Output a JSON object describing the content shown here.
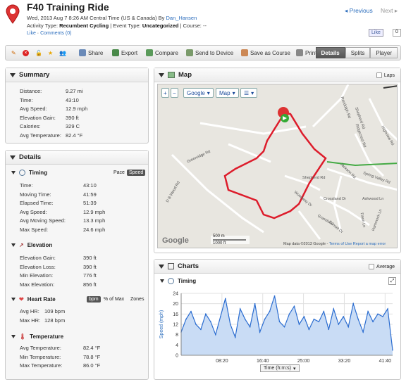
{
  "header": {
    "title": "F40 Training Ride",
    "date": "Wed, 2013 Aug 7 8:26 AM Central Time (US & Canada) By ",
    "user": "Dan_Hansen",
    "activity_type_label": "Activity Type: ",
    "activity_type": "Recumbent Cycling",
    "event_type_label": " | Event Type: ",
    "event_type": "Uncategorized",
    "course_label": " | Course: --",
    "like_link": "Like",
    "comments_link": "Comments (0)",
    "prev": "Previous",
    "next": "Next",
    "fb_like": "Like",
    "fb_count": "0"
  },
  "toolbar": {
    "share": "Share",
    "export": "Export",
    "compare": "Compare",
    "send": "Send to Device",
    "save_course": "Save as Course",
    "print": "Print",
    "tabs": [
      "Details",
      "Splits",
      "Player"
    ]
  },
  "summary": {
    "title": "Summary",
    "rows": [
      {
        "label": "Distance:",
        "value": "9.27 mi"
      },
      {
        "label": "Time:",
        "value": "43:10"
      },
      {
        "label": "Avg Speed:",
        "value": "12.9 mph"
      },
      {
        "label": "Elevation Gain:",
        "value": "390 ft"
      },
      {
        "label": "Calories:",
        "value": "329 C"
      },
      {
        "label": "Avg Temperature:",
        "value": "82.4 °F"
      }
    ]
  },
  "details": {
    "title": "Details",
    "timing": {
      "title": "Timing",
      "pace": "Pace",
      "speed": "Speed",
      "rows": [
        {
          "label": "Time:",
          "value": "43:10"
        },
        {
          "label": "Moving Time:",
          "value": "41:59"
        },
        {
          "label": "Elapsed Time:",
          "value": "51:39"
        },
        {
          "label": "Avg Speed:",
          "value": "12.9 mph"
        },
        {
          "label": "Avg Moving Speed:",
          "value": "13.3 mph"
        },
        {
          "label": "Max Speed:",
          "value": "24.6 mph"
        }
      ]
    },
    "elevation": {
      "title": "Elevation",
      "rows": [
        {
          "label": "Elevation Gain:",
          "value": "390 ft"
        },
        {
          "label": "Elevation Loss:",
          "value": "390 ft"
        },
        {
          "label": "Min Elevation:",
          "value": "776 ft"
        },
        {
          "label": "Max Elevation:",
          "value": "856 ft"
        }
      ]
    },
    "heart": {
      "title": "Heart Rate",
      "bpm": "bpm",
      "pct": "% of Max",
      "zones": "Zones",
      "rows": [
        {
          "label": "Avg HR:",
          "value": "109 bpm"
        },
        {
          "label": "Max HR:",
          "value": "128 bpm"
        }
      ]
    },
    "temp": {
      "title": "Temperature",
      "rows": [
        {
          "label": "Avg Temperature:",
          "value": "82.4 °F"
        },
        {
          "label": "Min Temperature:",
          "value": "78.8 °F"
        },
        {
          "label": "Max Temperature:",
          "value": "86.0 °F"
        }
      ]
    }
  },
  "map": {
    "title": "Map",
    "laps": "Laps",
    "google": "Google",
    "map_type": "Map",
    "scale_m": "500 m",
    "scale_ft": "1000 ft",
    "attribution": "Map data ©2013 Google - ",
    "terms": "Terms of Use",
    "report": "Report a map error",
    "logo": "Google",
    "roads": [
      "Shepherd Rd",
      "Greenridge Rd",
      "D B Wood Rd",
      "Shepherd Rd",
      "Woodway Dr",
      "Crossland Dr",
      "Grassland",
      "Sunset Dr",
      "Jackson Rd",
      "Ashwood Ln",
      "Hammock Ln",
      "Spring Valley Rd",
      "Fawn Ln",
      "Highview Rd",
      "Randolph Rd",
      "Ridgecrest Rd"
    ]
  },
  "charts": {
    "title": "Charts",
    "average": "Average",
    "timing": "Timing",
    "xaxis_select": "Time (h:m:s)"
  },
  "chart_data": {
    "type": "area",
    "title": "Timing",
    "ylabel": "Speed (mph)",
    "xlabel": "Time (h:m:s)",
    "ylim": [
      0,
      24
    ],
    "yticks": [
      0,
      4,
      8,
      12,
      16,
      20,
      24
    ],
    "xticks": [
      "08:20",
      "16:40",
      "25:00",
      "33:20",
      "41:40"
    ],
    "x": [
      0,
      1,
      2,
      3,
      4,
      5,
      6,
      7,
      8,
      9,
      10,
      11,
      12,
      13,
      14,
      15,
      16,
      17,
      18,
      19,
      20,
      21,
      22,
      23,
      24,
      25,
      26,
      27,
      28,
      29,
      30,
      31,
      32,
      33,
      34,
      35,
      36,
      37,
      38,
      39,
      40,
      41,
      42,
      43
    ],
    "values": [
      9,
      14,
      17,
      12,
      10,
      16,
      13,
      8,
      15,
      22,
      12,
      7,
      18,
      14,
      11,
      20,
      9,
      14,
      17,
      23,
      13,
      11,
      16,
      19,
      12,
      15,
      10,
      14,
      13,
      17,
      10,
      18,
      12,
      15,
      11,
      20,
      14,
      9,
      17,
      13,
      16,
      15,
      18,
      2
    ]
  }
}
